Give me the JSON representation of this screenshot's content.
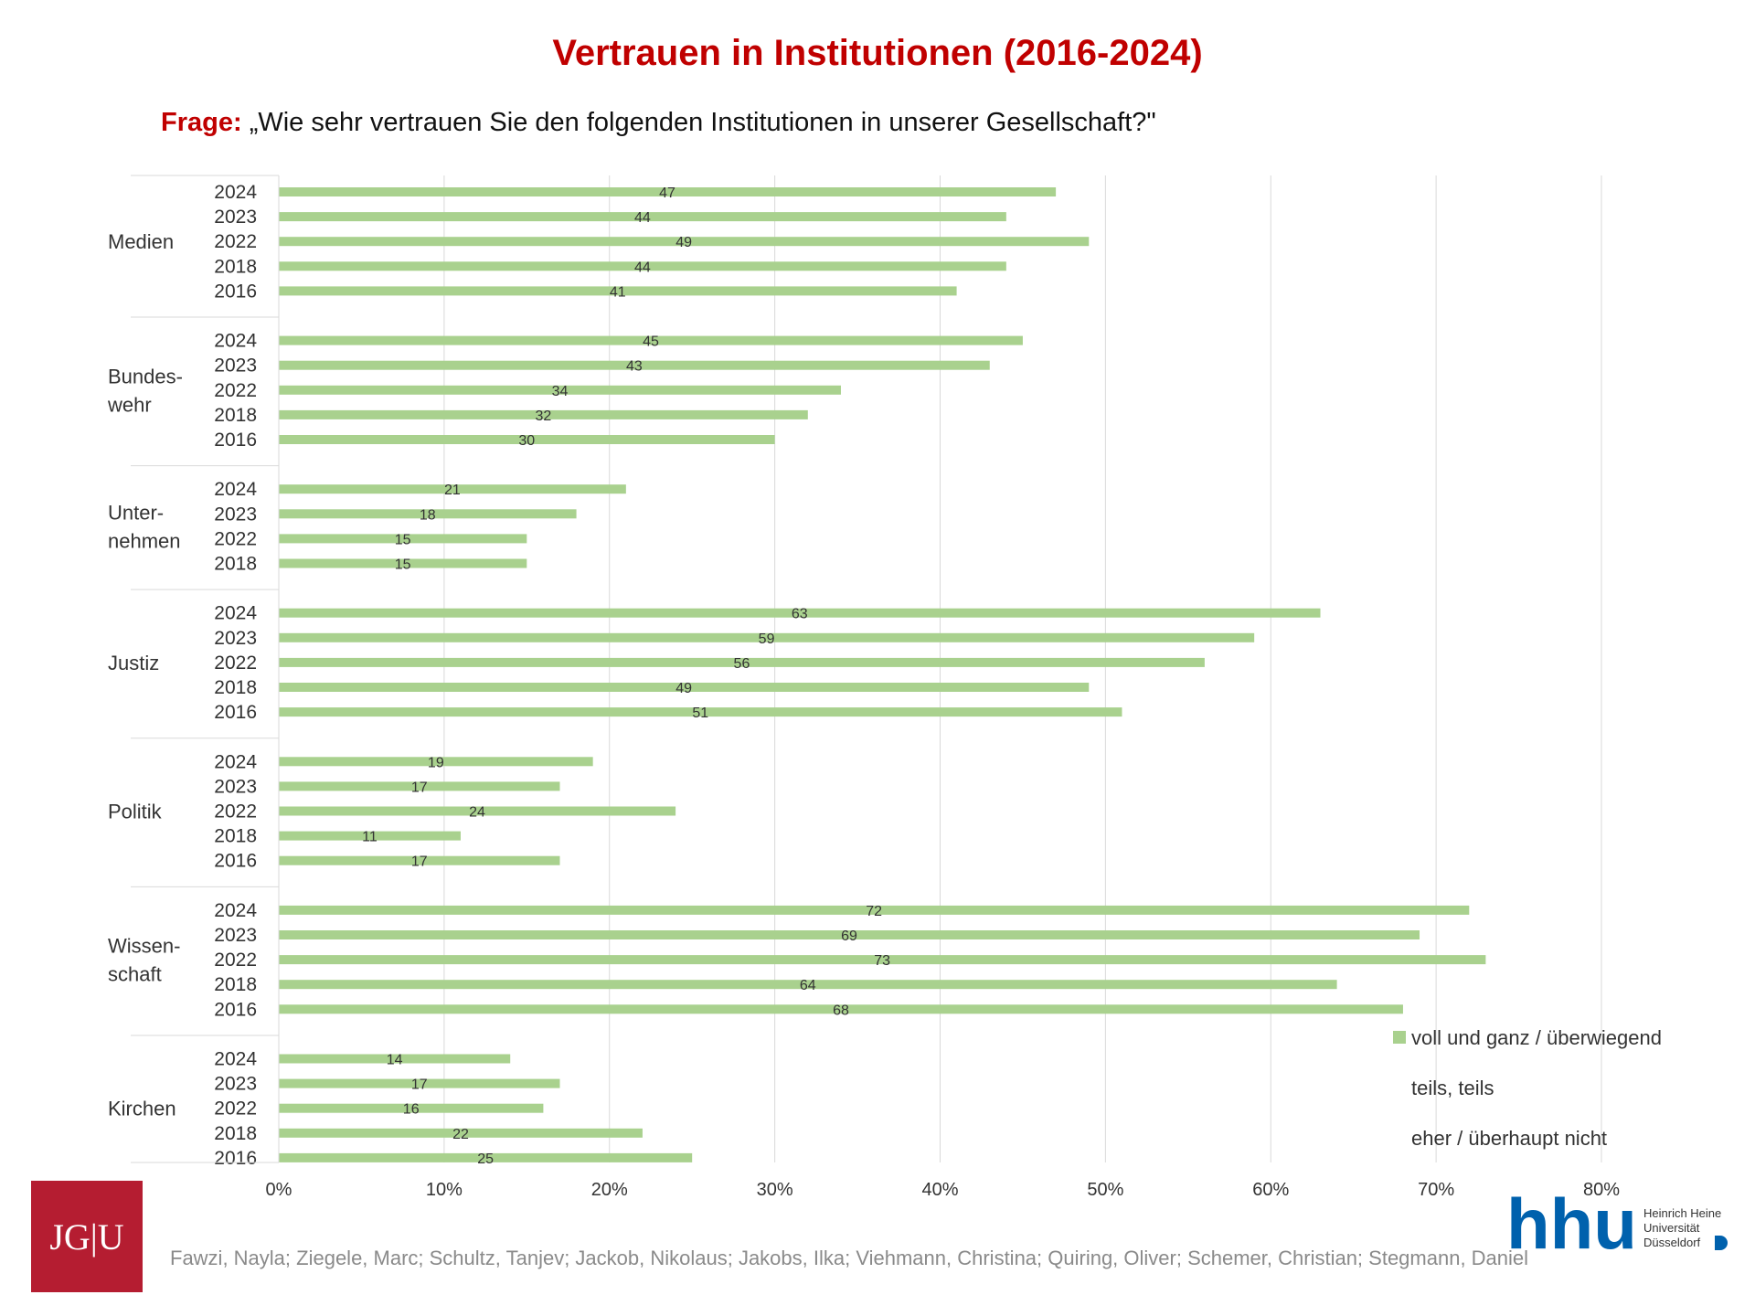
{
  "header": {
    "title": "Vertrauen in Institutionen (2016-2024)",
    "question_label": "Frage:",
    "question_text": "„Wie sehr vertrauen Sie den folgenden Institutionen in unserer Gesellschaft?\""
  },
  "chart_data": {
    "type": "bar",
    "orientation": "horizontal",
    "title": "Vertrauen in Institutionen (2016-2024)",
    "xlim": [
      0,
      80
    ],
    "x_ticks": [
      "0%",
      "10%",
      "20%",
      "30%",
      "40%",
      "50%",
      "60%",
      "70%",
      "80%"
    ],
    "grid": true,
    "bar_color": "#a9d18e",
    "legend": {
      "position": "bottom-right",
      "entries": [
        "voll und ganz / überwiegend",
        "teils, teils",
        "eher / überhaupt nicht"
      ]
    },
    "groups": [
      {
        "label": [
          "Medien"
        ],
        "bars": [
          {
            "year": "2024",
            "value": 47
          },
          {
            "year": "2023",
            "value": 44
          },
          {
            "year": "2022",
            "value": 49
          },
          {
            "year": "2018",
            "value": 44
          },
          {
            "year": "2016",
            "value": 41
          }
        ]
      },
      {
        "label": [
          "Bundes-",
          "wehr"
        ],
        "bars": [
          {
            "year": "2024",
            "value": 45
          },
          {
            "year": "2023",
            "value": 43
          },
          {
            "year": "2022",
            "value": 34
          },
          {
            "year": "2018",
            "value": 32
          },
          {
            "year": "2016",
            "value": 30
          }
        ]
      },
      {
        "label": [
          "Unter-",
          "nehmen"
        ],
        "bars": [
          {
            "year": "2024",
            "value": 21
          },
          {
            "year": "2023",
            "value": 18
          },
          {
            "year": "2022",
            "value": 15
          },
          {
            "year": "2018",
            "value": 15
          }
        ]
      },
      {
        "label": [
          "Justiz"
        ],
        "bars": [
          {
            "year": "2024",
            "value": 63
          },
          {
            "year": "2023",
            "value": 59
          },
          {
            "year": "2022",
            "value": 56
          },
          {
            "year": "2018",
            "value": 49
          },
          {
            "year": "2016",
            "value": 51
          }
        ]
      },
      {
        "label": [
          "Politik"
        ],
        "bars": [
          {
            "year": "2024",
            "value": 19
          },
          {
            "year": "2023",
            "value": 17
          },
          {
            "year": "2022",
            "value": 24
          },
          {
            "year": "2018",
            "value": 11
          },
          {
            "year": "2016",
            "value": 17
          }
        ]
      },
      {
        "label": [
          "Wissen-",
          "schaft"
        ],
        "bars": [
          {
            "year": "2024",
            "value": 72
          },
          {
            "year": "2023",
            "value": 69
          },
          {
            "year": "2022",
            "value": 73
          },
          {
            "year": "2018",
            "value": 64
          },
          {
            "year": "2016",
            "value": 68
          }
        ]
      },
      {
        "label": [
          "Kirchen"
        ],
        "bars": [
          {
            "year": "2024",
            "value": 14
          },
          {
            "year": "2023",
            "value": 17
          },
          {
            "year": "2022",
            "value": 16
          },
          {
            "year": "2018",
            "value": 22
          },
          {
            "year": "2016",
            "value": 25
          }
        ]
      }
    ]
  },
  "footer": {
    "credits": "Fawzi, Nayla; Ziegele, Marc; Schultz, Tanjev; Jackob, Nikolaus; Jakobs, Ilka; Viehmann, Christina; Quiring, Oliver; Schemer, Christian; Stegmann, Daniel",
    "jgu_logo_text": "JG|U",
    "hhu_logo_text": "hhu",
    "hhu_subtitle": [
      "Heinrich Heine",
      "Universität",
      "Düsseldorf"
    ],
    "jgu_color": "#b51d31",
    "hhu_color": "#0061ad"
  }
}
